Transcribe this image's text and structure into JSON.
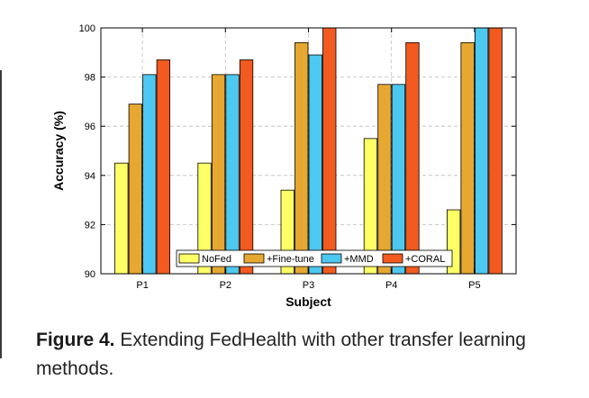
{
  "chart_data": {
    "type": "bar",
    "xlabel": "Subject",
    "ylabel": "Accuracy (%)",
    "ylim": [
      90,
      100
    ],
    "yticks": [
      90,
      92,
      94,
      96,
      98,
      100
    ],
    "categories": [
      "P1",
      "P2",
      "P3",
      "P4",
      "P5"
    ],
    "grid": true,
    "legend_position": "bottom-center",
    "series": [
      {
        "name": "NoFed",
        "color": "#ffff66",
        "values": [
          94.5,
          94.5,
          93.4,
          95.5,
          92.6
        ]
      },
      {
        "name": "+Fine-tune",
        "color": "#e6a830",
        "values": [
          96.9,
          98.1,
          99.4,
          97.7,
          99.4
        ]
      },
      {
        "name": "+MMD",
        "color": "#4dc8f0",
        "values": [
          98.1,
          98.1,
          98.9,
          97.7,
          100
        ]
      },
      {
        "name": "+CORAL",
        "color": "#f25a1f",
        "values": [
          98.7,
          98.7,
          100,
          99.4,
          100
        ]
      }
    ]
  },
  "caption": {
    "label": "Figure 4.",
    "text": " Extending FedHealth with other transfer learning methods."
  }
}
